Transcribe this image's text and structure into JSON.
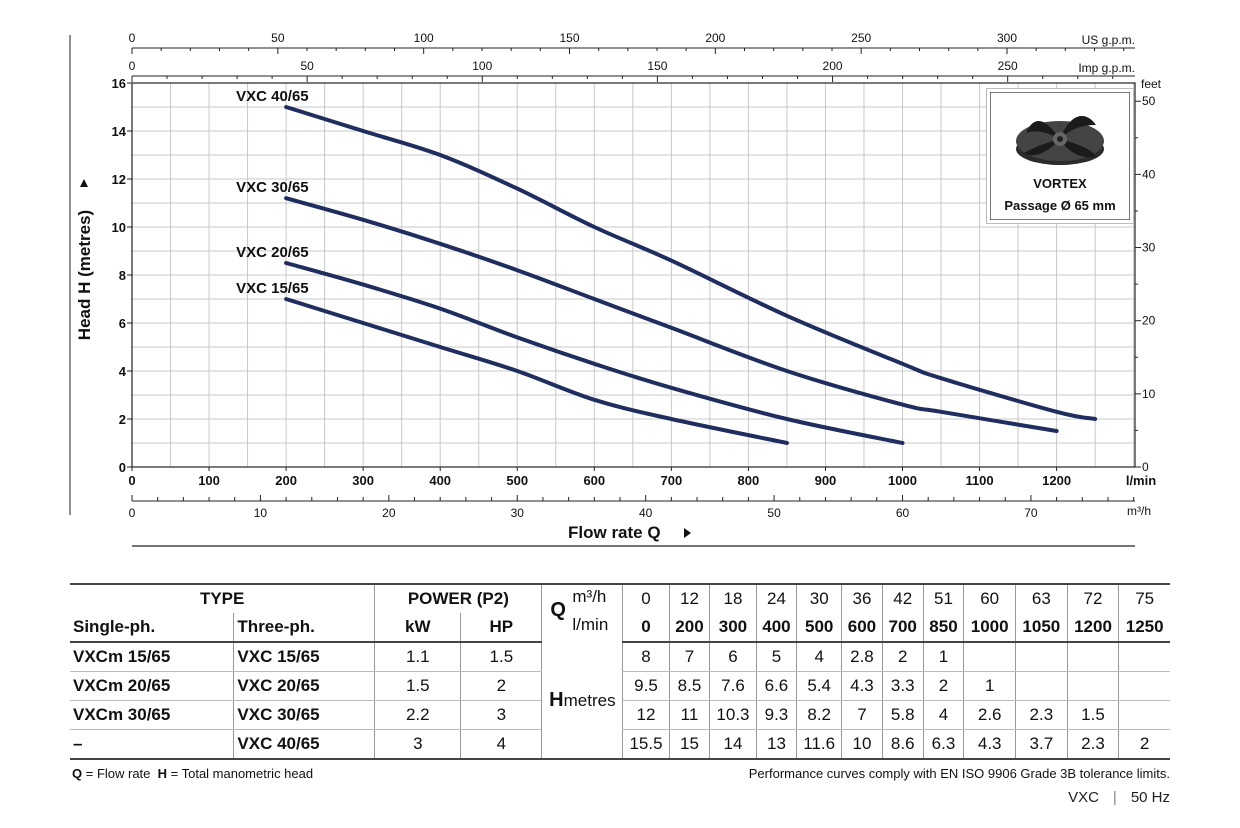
{
  "chart_data": {
    "type": "line",
    "title": "",
    "ylabel": "Head H (metres)",
    "xlabel": "Flow rate Q",
    "x_unit_main": "l/min",
    "x_unit_m3h": "m³/h",
    "top_axis_us": "US g.p.m.",
    "top_axis_imp": "Imp g.p.m.",
    "right_axis_unit": "feet",
    "xlim": [
      0,
      1300
    ],
    "ylim": [
      0,
      16
    ],
    "grid": true,
    "x_ticks_lmin": [
      0,
      100,
      200,
      300,
      400,
      500,
      600,
      700,
      800,
      900,
      1000,
      1100,
      1200
    ],
    "y_ticks": [
      0,
      2,
      4,
      6,
      8,
      10,
      12,
      14,
      16
    ],
    "feet_ticks": [
      0,
      10,
      20,
      30,
      40,
      50
    ],
    "m3h_ticks": [
      0,
      10,
      20,
      30,
      40,
      50,
      60,
      70
    ],
    "us_gpm_ticks": [
      0,
      50,
      100,
      150,
      200,
      250,
      300
    ],
    "imp_gpm_ticks": [
      0,
      50,
      100,
      150,
      200,
      250
    ],
    "series": [
      {
        "name": "VXC 40/65",
        "x": [
          200,
          300,
          400,
          500,
          600,
          700,
          850,
          1000,
          1050,
          1200,
          1250
        ],
        "y": [
          15,
          14,
          13,
          11.6,
          10,
          8.6,
          6.3,
          4.3,
          3.7,
          2.3,
          2
        ]
      },
      {
        "name": "VXC 30/65",
        "x": [
          200,
          300,
          400,
          500,
          600,
          700,
          850,
          1000,
          1050,
          1200
        ],
        "y": [
          11.2,
          10.3,
          9.3,
          8.2,
          7,
          5.8,
          4,
          2.6,
          2.3,
          1.5
        ]
      },
      {
        "name": "VXC 20/65",
        "x": [
          200,
          300,
          400,
          500,
          600,
          700,
          850,
          1000
        ],
        "y": [
          8.5,
          7.6,
          6.6,
          5.4,
          4.3,
          3.3,
          2,
          1
        ]
      },
      {
        "name": "VXC 15/65",
        "x": [
          200,
          300,
          400,
          500,
          600,
          700,
          850
        ],
        "y": [
          7,
          6,
          5,
          4,
          2.8,
          2,
          1
        ]
      }
    ],
    "line_color": "#1f2d5f"
  },
  "inset": {
    "label": "VORTEX",
    "passage": "Passage Ø 65 mm"
  },
  "table": {
    "type_header": "TYPE",
    "power_header": "POWER (P2)",
    "single_ph": "Single-ph.",
    "three_ph": "Three-ph.",
    "kw": "kW",
    "hp": "HP",
    "q": "Q",
    "m3h": "m³/h",
    "lmin": "l/min",
    "h_label": "H",
    "h_unit": "metres",
    "flow_m3h": [
      "0",
      "12",
      "18",
      "24",
      "30",
      "36",
      "42",
      "51",
      "60",
      "63",
      "72",
      "75"
    ],
    "flow_lmin": [
      "0",
      "200",
      "300",
      "400",
      "500",
      "600",
      "700",
      "850",
      "1000",
      "1050",
      "1200",
      "1250"
    ],
    "rows": [
      {
        "single": "VXCm 15/65",
        "three": "VXC 15/65",
        "kw": "1.1",
        "hp": "1.5",
        "h": [
          "8",
          "7",
          "6",
          "5",
          "4",
          "2.8",
          "2",
          "1",
          "",
          "",
          "",
          ""
        ]
      },
      {
        "single": "VXCm 20/65",
        "three": "VXC 20/65",
        "kw": "1.5",
        "hp": "2",
        "h": [
          "9.5",
          "8.5",
          "7.6",
          "6.6",
          "5.4",
          "4.3",
          "3.3",
          "2",
          "1",
          "",
          "",
          ""
        ]
      },
      {
        "single": "VXCm 30/65",
        "three": "VXC 30/65",
        "kw": "2.2",
        "hp": "3",
        "h": [
          "12",
          "11",
          "10.3",
          "9.3",
          "8.2",
          "7",
          "5.8",
          "4",
          "2.6",
          "2.3",
          "1.5",
          ""
        ]
      },
      {
        "single": "–",
        "three": "VXC 40/65",
        "kw": "3",
        "hp": "4",
        "h": [
          "15.5",
          "15",
          "14",
          "13",
          "11.6",
          "10",
          "8.6",
          "6.3",
          "4.3",
          "3.7",
          "2.3",
          "2"
        ]
      }
    ]
  },
  "footnote": {
    "q_key": "Q",
    "q_text": " = Flow rate  ",
    "h_key": "H",
    "h_text": " = Total manometric head",
    "right": "Performance curves comply with EN ISO 9906 Grade 3B tolerance limits."
  },
  "footer": {
    "model": "VXC",
    "freq": "50 Hz"
  }
}
